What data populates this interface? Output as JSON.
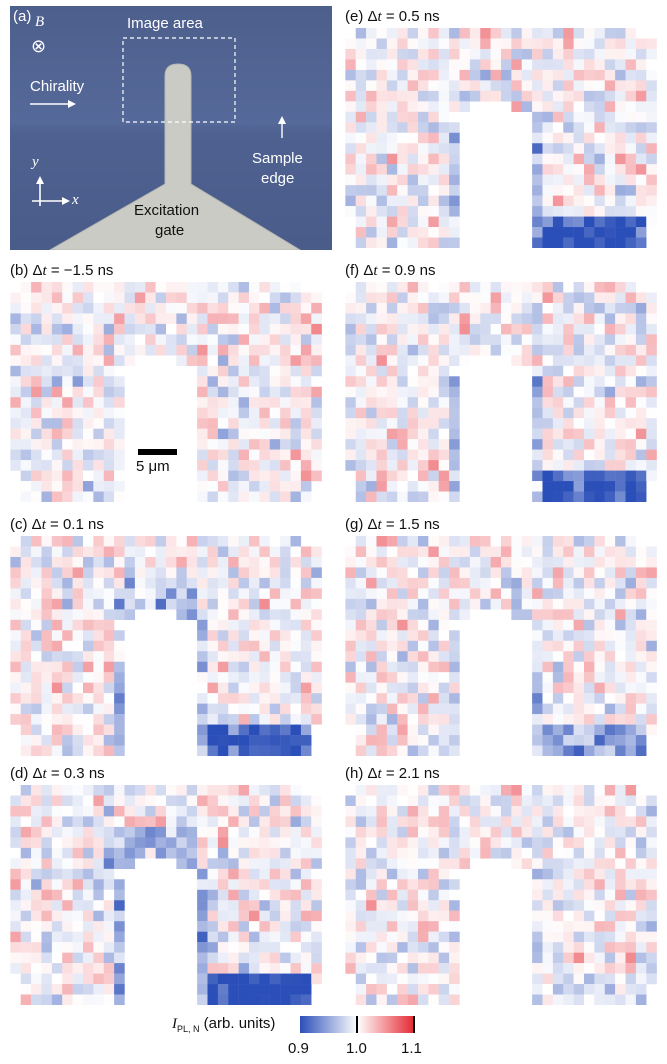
{
  "panel_a": {
    "label": "(a)",
    "b_symbol": "B",
    "b_glyph": "⊗",
    "image_area": "Image area",
    "chirality": "Chirality",
    "sample_edge_1": "Sample",
    "sample_edge_2": "edge",
    "axis_y": "y",
    "axis_x": "x",
    "gate_1": "Excitation",
    "gate_2": "gate"
  },
  "panels": [
    {
      "id": "b",
      "label_prefix": "(b) Δ",
      "var": "t",
      "label_suffix": " = −1.5 ns",
      "dt_ns": -1.5
    },
    {
      "id": "c",
      "label_prefix": "(c) Δ",
      "var": "t",
      "label_suffix": " = 0.1 ns",
      "dt_ns": 0.1
    },
    {
      "id": "d",
      "label_prefix": "(d) Δ",
      "var": "t",
      "label_suffix": " = 0.3 ns",
      "dt_ns": 0.3
    },
    {
      "id": "e",
      "label_prefix": "(e) Δ",
      "var": "t",
      "label_suffix": " = 0.5 ns",
      "dt_ns": 0.5
    },
    {
      "id": "f",
      "label_prefix": "(f) Δ",
      "var": "t",
      "label_suffix": " = 0.9 ns",
      "dt_ns": 0.9
    },
    {
      "id": "g",
      "label_prefix": "(g) Δ",
      "var": "t",
      "label_suffix": " = 1.5 ns",
      "dt_ns": 1.5
    },
    {
      "id": "h",
      "label_prefix": "(h) Δ",
      "var": "t",
      "label_suffix": " = 2.1 ns",
      "dt_ns": 2.1
    }
  ],
  "scale_bar": {
    "label": "5 μm"
  },
  "colorbar": {
    "label_main": "I",
    "label_sub": "PL, N",
    "label_rest": " (arb. units)",
    "ticks": [
      "0.9",
      "1.0",
      "1.1"
    ],
    "min": 0.9,
    "mid": 1.0,
    "max": 1.1,
    "colors": {
      "low": "#2b4fb8",
      "mid": "#ffffff",
      "high": "#e5252f"
    }
  },
  "chart_data": {
    "type": "heatmap",
    "panels": [
      "(b) Δt = −1.5 ns",
      "(c) Δt = 0.1 ns",
      "(d) Δt = 0.3 ns",
      "(e) Δt = 0.5 ns",
      "(f) Δt = 0.9 ns",
      "(g) Δt = 1.5 ns",
      "(h) Δt = 2.1 ns"
    ],
    "time_delays_ns": [
      -1.5,
      0.1,
      0.3,
      0.5,
      0.9,
      1.5,
      2.1
    ],
    "value_range": [
      0.9,
      1.1
    ],
    "colorbar_ticks": [
      0.9,
      1.0,
      1.1
    ],
    "grid": "30 × 21 pixels per map",
    "edge_depletion_level": [
      0.0,
      0.8,
      1.0,
      0.9,
      0.8,
      0.45,
      0.15
    ]
  }
}
